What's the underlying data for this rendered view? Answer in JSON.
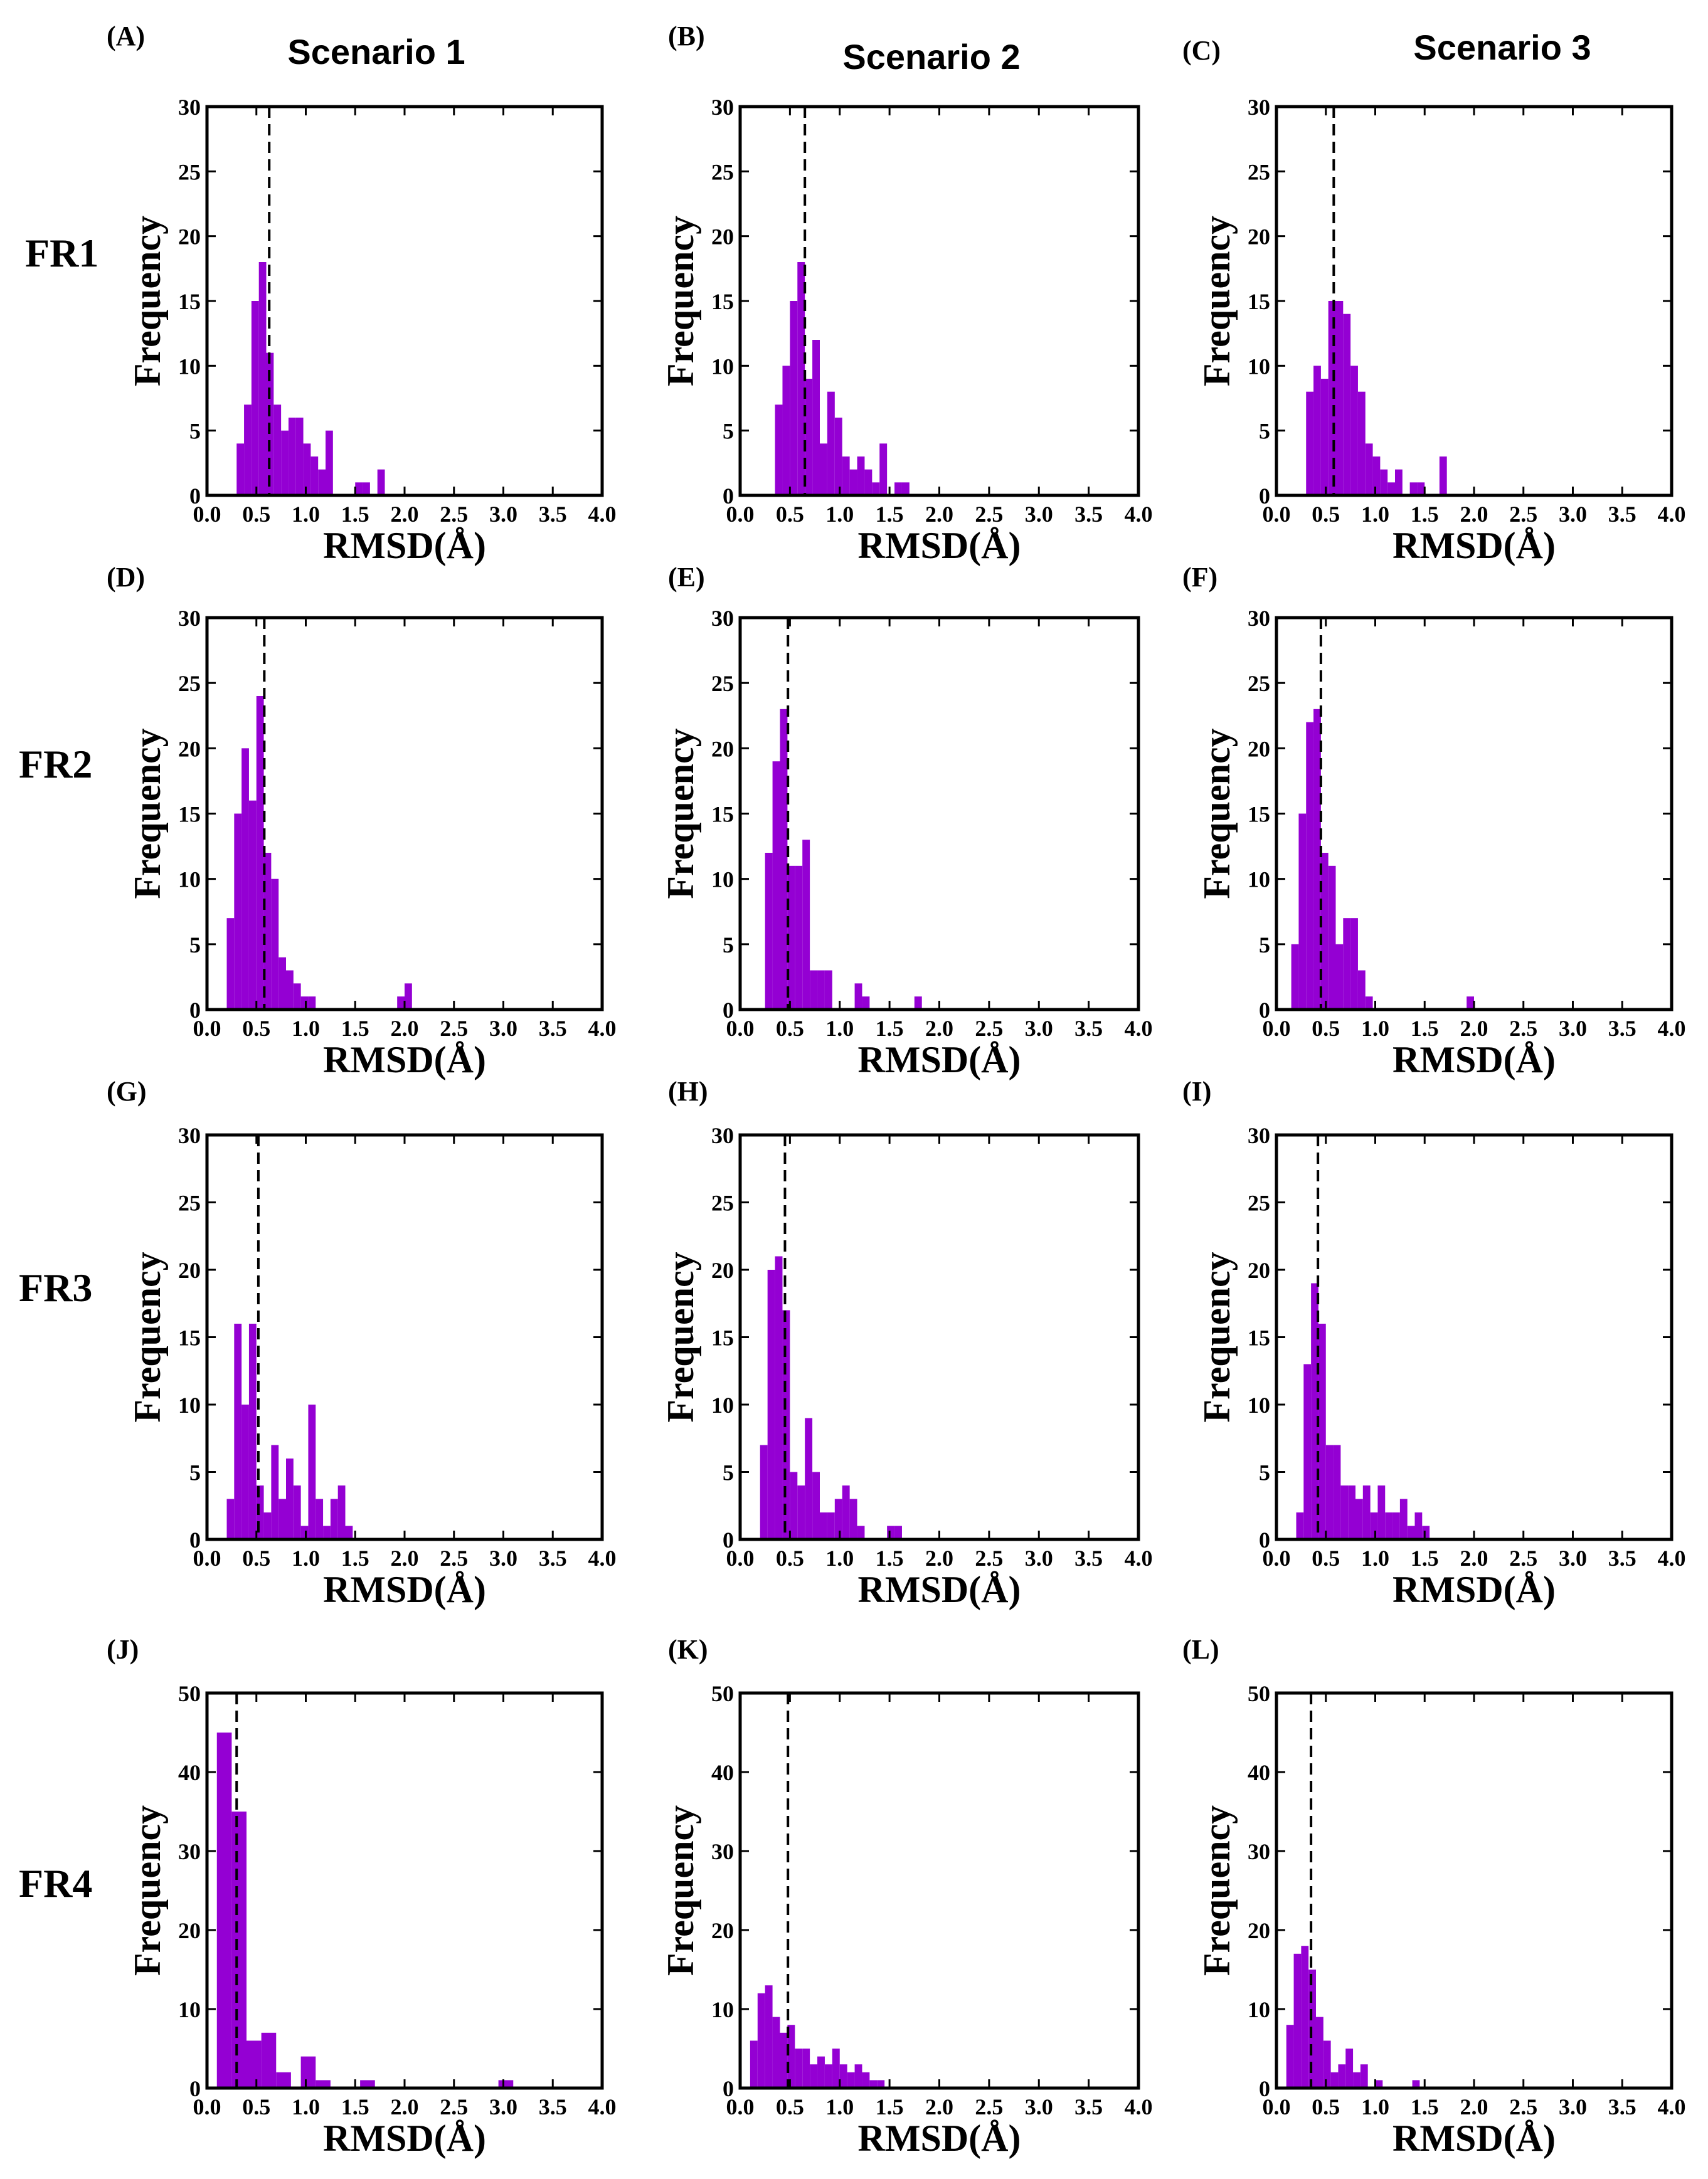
{
  "figure": {
    "column_titles": [
      "Scenario 1",
      "Scenario 2",
      "Scenario 3"
    ],
    "row_labels": [
      "FR1",
      "FR2",
      "FR3",
      "FR4"
    ],
    "bar_color": "#9400d3",
    "axis_color": "#000000"
  },
  "chart_data": [
    {
      "type": "bar",
      "panel": "(A)",
      "row": 0,
      "col": 0,
      "xlabel": "RMSD(Å)",
      "ylabel": "Frequency",
      "xlim": [
        0,
        4
      ],
      "ylim": [
        0,
        30
      ],
      "xticks": [
        "0.0",
        "0.5",
        "1.0",
        "1.5",
        "2.0",
        "2.5",
        "3.0",
        "3.5",
        "4.0"
      ],
      "yticks": [
        "0",
        "5",
        "10",
        "15",
        "20",
        "25",
        "30"
      ],
      "mean_line": 0.63,
      "bin_width": 0.075,
      "bins": [
        0.3,
        0.375,
        0.45,
        0.525,
        0.6,
        0.675,
        0.75,
        0.825,
        0.9,
        0.975,
        1.05,
        1.125,
        1.2,
        1.5,
        1.575,
        1.725
      ],
      "values": [
        4,
        7,
        15,
        18,
        11,
        7,
        5,
        6,
        6,
        4,
        3,
        2,
        5,
        1,
        1,
        2
      ]
    },
    {
      "type": "bar",
      "panel": "(B)",
      "row": 0,
      "col": 1,
      "xlabel": "RMSD(Å)",
      "ylabel": "Frequency",
      "xlim": [
        0,
        4
      ],
      "ylim": [
        0,
        30
      ],
      "xticks": [
        "0.0",
        "0.5",
        "1.0",
        "1.5",
        "2.0",
        "2.5",
        "3.0",
        "3.5",
        "4.0"
      ],
      "yticks": [
        "0",
        "5",
        "10",
        "15",
        "20",
        "25",
        "30"
      ],
      "mean_line": 0.65,
      "bin_width": 0.075,
      "bins": [
        0.35,
        0.425,
        0.5,
        0.575,
        0.65,
        0.725,
        0.8,
        0.875,
        0.95,
        1.025,
        1.1,
        1.175,
        1.25,
        1.325,
        1.4,
        1.55,
        1.625
      ],
      "values": [
        7,
        10,
        15,
        18,
        9,
        12,
        4,
        8,
        6,
        3,
        2,
        3,
        2,
        1,
        4,
        1,
        1
      ]
    },
    {
      "type": "bar",
      "panel": "(C)",
      "row": 0,
      "col": 2,
      "xlabel": "RMSD(Å)",
      "ylabel": "Frequency",
      "xlim": [
        0,
        4
      ],
      "ylim": [
        0,
        30
      ],
      "xticks": [
        "0.0",
        "0.5",
        "1.0",
        "1.5",
        "2.0",
        "2.5",
        "3.0",
        "3.5",
        "4.0"
      ],
      "yticks": [
        "0",
        "5",
        "10",
        "15",
        "20",
        "25",
        "30"
      ],
      "mean_line": 0.58,
      "bin_width": 0.075,
      "bins": [
        0.3,
        0.375,
        0.45,
        0.525,
        0.6,
        0.675,
        0.75,
        0.825,
        0.9,
        0.975,
        1.05,
        1.125,
        1.2,
        1.35,
        1.425,
        1.65
      ],
      "values": [
        8,
        10,
        9,
        15,
        15,
        14,
        10,
        8,
        4,
        3,
        2,
        1,
        2,
        1,
        1,
        3
      ]
    },
    {
      "type": "bar",
      "panel": "(D)",
      "row": 1,
      "col": 0,
      "xlabel": "RMSD(Å)",
      "ylabel": "Frequency",
      "xlim": [
        0,
        4
      ],
      "ylim": [
        0,
        30
      ],
      "xticks": [
        "0.0",
        "0.5",
        "1.0",
        "1.5",
        "2.0",
        "2.5",
        "3.0",
        "3.5",
        "4.0"
      ],
      "yticks": [
        "0",
        "5",
        "10",
        "15",
        "20",
        "25",
        "30"
      ],
      "mean_line": 0.58,
      "bin_width": 0.075,
      "bins": [
        0.2,
        0.275,
        0.35,
        0.425,
        0.5,
        0.575,
        0.65,
        0.725,
        0.8,
        0.875,
        0.95,
        1.025,
        1.925,
        2.0
      ],
      "values": [
        7,
        15,
        20,
        16,
        24,
        12,
        10,
        4,
        3,
        2,
        1,
        1,
        1,
        2
      ]
    },
    {
      "type": "bar",
      "panel": "(E)",
      "row": 1,
      "col": 1,
      "xlabel": "RMSD(Å)",
      "ylabel": "Frequency",
      "xlim": [
        0,
        4
      ],
      "ylim": [
        0,
        30
      ],
      "xticks": [
        "0.0",
        "0.5",
        "1.0",
        "1.5",
        "2.0",
        "2.5",
        "3.0",
        "3.5",
        "4.0"
      ],
      "yticks": [
        "0",
        "5",
        "10",
        "15",
        "20",
        "25",
        "30"
      ],
      "mean_line": 0.48,
      "bin_width": 0.075,
      "bins": [
        0.25,
        0.325,
        0.4,
        0.475,
        0.55,
        0.625,
        0.7,
        0.775,
        0.85,
        1.15,
        1.225,
        1.75
      ],
      "values": [
        12,
        19,
        23,
        11,
        11,
        13,
        3,
        3,
        3,
        2,
        1,
        1
      ]
    },
    {
      "type": "bar",
      "panel": "(F)",
      "row": 1,
      "col": 2,
      "xlabel": "RMSD(Å)",
      "ylabel": "Frequency",
      "xlim": [
        0,
        4
      ],
      "ylim": [
        0,
        30
      ],
      "xticks": [
        "0.0",
        "0.5",
        "1.0",
        "1.5",
        "2.0",
        "2.5",
        "3.0",
        "3.5",
        "4.0"
      ],
      "yticks": [
        "0",
        "5",
        "10",
        "15",
        "20",
        "25",
        "30"
      ],
      "mean_line": 0.45,
      "bin_width": 0.075,
      "bins": [
        0.15,
        0.225,
        0.3,
        0.375,
        0.45,
        0.525,
        0.6,
        0.675,
        0.75,
        0.825,
        0.9,
        1.925
      ],
      "values": [
        5,
        15,
        22,
        23,
        12,
        11,
        5,
        7,
        7,
        3,
        1,
        1
      ]
    },
    {
      "type": "bar",
      "panel": "(G)",
      "row": 2,
      "col": 0,
      "xlabel": "RMSD(Å)",
      "ylabel": "Frequency",
      "xlim": [
        0,
        4
      ],
      "ylim": [
        0,
        30
      ],
      "xticks": [
        "0.0",
        "0.5",
        "1.0",
        "1.5",
        "2.0",
        "2.5",
        "3.0",
        "3.5",
        "4.0"
      ],
      "yticks": [
        "0",
        "5",
        "10",
        "15",
        "20",
        "25",
        "30"
      ],
      "mean_line": 0.52,
      "bin_width": 0.075,
      "bins": [
        0.2,
        0.275,
        0.35,
        0.425,
        0.5,
        0.575,
        0.65,
        0.725,
        0.8,
        0.875,
        0.95,
        1.025,
        1.1,
        1.175,
        1.25,
        1.325,
        1.4
      ],
      "values": [
        3,
        16,
        10,
        16,
        4,
        2,
        7,
        3,
        6,
        4,
        1,
        10,
        3,
        1,
        3,
        4,
        1
      ]
    },
    {
      "type": "bar",
      "panel": "(H)",
      "row": 2,
      "col": 1,
      "xlabel": "RMSD(Å)",
      "ylabel": "Frequency",
      "xlim": [
        0,
        4
      ],
      "ylim": [
        0,
        30
      ],
      "xticks": [
        "0.0",
        "0.5",
        "1.0",
        "1.5",
        "2.0",
        "2.5",
        "3.0",
        "3.5",
        "4.0"
      ],
      "yticks": [
        "0",
        "5",
        "10",
        "15",
        "20",
        "25",
        "30"
      ],
      "mean_line": 0.45,
      "bin_width": 0.075,
      "bins": [
        0.2,
        0.275,
        0.35,
        0.425,
        0.5,
        0.575,
        0.65,
        0.725,
        0.8,
        0.875,
        0.95,
        1.025,
        1.1,
        1.175,
        1.475,
        1.55
      ],
      "values": [
        7,
        20,
        21,
        17,
        5,
        4,
        9,
        5,
        2,
        2,
        3,
        4,
        3,
        1,
        1,
        1
      ]
    },
    {
      "type": "bar",
      "panel": "(I)",
      "row": 2,
      "col": 2,
      "xlabel": "RMSD(Å)",
      "ylabel": "Frequency",
      "xlim": [
        0,
        4
      ],
      "ylim": [
        0,
        30
      ],
      "xticks": [
        "0.0",
        "0.5",
        "1.0",
        "1.5",
        "2.0",
        "2.5",
        "3.0",
        "3.5",
        "4.0"
      ],
      "yticks": [
        "0",
        "5",
        "10",
        "15",
        "20",
        "25",
        "30"
      ],
      "mean_line": 0.42,
      "bin_width": 0.075,
      "bins": [
        0.2,
        0.275,
        0.35,
        0.425,
        0.5,
        0.575,
        0.65,
        0.725,
        0.8,
        0.875,
        0.95,
        1.025,
        1.1,
        1.175,
        1.25,
        1.325,
        1.4,
        1.475
      ],
      "values": [
        2,
        13,
        19,
        16,
        7,
        7,
        4,
        4,
        3,
        4,
        2,
        4,
        2,
        2,
        3,
        1,
        2,
        1
      ]
    },
    {
      "type": "bar",
      "panel": "(J)",
      "row": 3,
      "col": 0,
      "xlabel": "RMSD(Å)",
      "ylabel": "Frequency",
      "xlim": [
        0,
        4
      ],
      "ylim": [
        0,
        50
      ],
      "xticks": [
        "0.0",
        "0.5",
        "1.0",
        "1.5",
        "2.0",
        "2.5",
        "3.0",
        "3.5",
        "4.0"
      ],
      "yticks": [
        "0",
        "10",
        "20",
        "30",
        "40",
        "50"
      ],
      "mean_line": 0.3,
      "bin_width": 0.15,
      "bins": [
        0.1,
        0.25,
        0.4,
        0.55,
        0.7,
        0.95,
        1.1,
        1.55,
        2.95
      ],
      "values": [
        45,
        35,
        6,
        7,
        2,
        4,
        1,
        1,
        1
      ]
    },
    {
      "type": "bar",
      "panel": "(K)",
      "row": 3,
      "col": 1,
      "xlabel": "RMSD(Å)",
      "ylabel": "Frequency",
      "xlim": [
        0,
        4
      ],
      "ylim": [
        0,
        50
      ],
      "xticks": [
        "0.0",
        "0.5",
        "1.0",
        "1.5",
        "2.0",
        "2.5",
        "3.0",
        "3.5",
        "4.0"
      ],
      "yticks": [
        "0",
        "10",
        "20",
        "30",
        "40",
        "50"
      ],
      "mean_line": 0.48,
      "bin_width": 0.075,
      "bins": [
        0.1,
        0.175,
        0.25,
        0.325,
        0.4,
        0.475,
        0.55,
        0.625,
        0.7,
        0.775,
        0.85,
        0.925,
        1.0,
        1.075,
        1.15,
        1.225,
        1.3,
        1.375
      ],
      "values": [
        6,
        12,
        13,
        9,
        7,
        8,
        5,
        5,
        3,
        4,
        3,
        5,
        3,
        2,
        3,
        2,
        1,
        1
      ]
    },
    {
      "type": "bar",
      "panel": "(L)",
      "row": 3,
      "col": 2,
      "xlabel": "RMSD(Å)",
      "ylabel": "Frequency",
      "xlim": [
        0,
        4
      ],
      "ylim": [
        0,
        50
      ],
      "xticks": [
        "0.0",
        "0.5",
        "1.0",
        "1.5",
        "2.0",
        "2.5",
        "3.0",
        "3.5",
        "4.0"
      ],
      "yticks": [
        "0",
        "10",
        "20",
        "30",
        "40",
        "50"
      ],
      "mean_line": 0.35,
      "bin_width": 0.075,
      "bins": [
        0.1,
        0.175,
        0.25,
        0.325,
        0.4,
        0.475,
        0.55,
        0.625,
        0.7,
        0.775,
        0.85,
        1.0,
        1.375
      ],
      "values": [
        8,
        17,
        18,
        15,
        9,
        6,
        2,
        3,
        5,
        2,
        3,
        1,
        1
      ]
    }
  ]
}
